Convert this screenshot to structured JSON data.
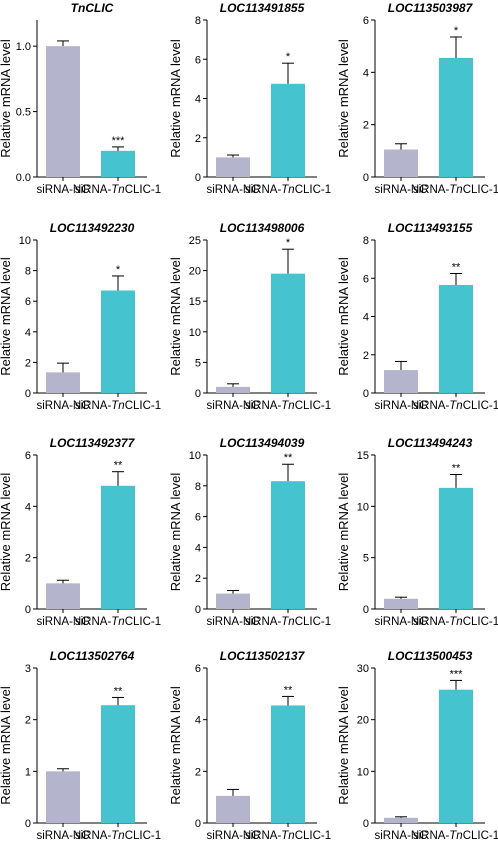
{
  "chart_data": [
    {
      "type": "bar",
      "title": "TnCLIC",
      "ylabel": "Relative mRNA level",
      "ylim": [
        0,
        1.2
      ],
      "yticks": [
        "0.0",
        "0.5",
        "1.0"
      ],
      "ytick_values": [
        0,
        0.5,
        1.0
      ],
      "categories": [
        {
          "prefix": "siRNA-NC",
          "italic": "",
          "suffix": ""
        },
        {
          "prefix": "siRNA-",
          "italic": "Tn",
          "suffix": "CLIC-1"
        }
      ],
      "values": [
        1.0,
        0.2
      ],
      "errors": [
        0.04,
        0.03
      ],
      "significance": "***",
      "colors": [
        "#b4b4cc",
        "#45c4cf"
      ]
    },
    {
      "type": "bar",
      "title": "LOC113491855",
      "ylabel": "Relative mRNA level",
      "ylim": [
        0,
        8
      ],
      "yticks": [
        "0",
        "2",
        "4",
        "6",
        "8"
      ],
      "ytick_values": [
        0,
        2,
        4,
        6,
        8
      ],
      "categories": [
        {
          "prefix": "siRNA-NC",
          "italic": "",
          "suffix": ""
        },
        {
          "prefix": "siRNA-",
          "italic": "Tn",
          "suffix": "CLIC-1"
        }
      ],
      "values": [
        1.0,
        4.75
      ],
      "errors": [
        0.12,
        1.05
      ],
      "significance": "*",
      "colors": [
        "#b4b4cc",
        "#45c4cf"
      ]
    },
    {
      "type": "bar",
      "title": "LOC113503987",
      "ylabel": "Relative mRNA level",
      "ylim": [
        0,
        6
      ],
      "yticks": [
        "0",
        "2",
        "4",
        "6"
      ],
      "ytick_values": [
        0,
        2,
        4,
        6
      ],
      "categories": [
        {
          "prefix": "siRNA-NC",
          "italic": "",
          "suffix": ""
        },
        {
          "prefix": "siRNA-",
          "italic": "Tn",
          "suffix": "CLIC-1"
        }
      ],
      "values": [
        1.05,
        4.55
      ],
      "errors": [
        0.22,
        0.8
      ],
      "significance": "*",
      "colors": [
        "#b4b4cc",
        "#45c4cf"
      ]
    },
    {
      "type": "bar",
      "title": "LOC113492230",
      "ylabel": "Relative mRNA level",
      "ylim": [
        0,
        10
      ],
      "yticks": [
        "0",
        "2",
        "4",
        "6",
        "8",
        "10"
      ],
      "ytick_values": [
        0,
        2,
        4,
        6,
        8,
        10
      ],
      "categories": [
        {
          "prefix": "siRNA-NC",
          "italic": "",
          "suffix": ""
        },
        {
          "prefix": "siRNA-",
          "italic": "Tn",
          "suffix": "CLIC-1"
        }
      ],
      "values": [
        1.35,
        6.7
      ],
      "errors": [
        0.6,
        0.95
      ],
      "significance": "*",
      "colors": [
        "#b4b4cc",
        "#45c4cf"
      ]
    },
    {
      "type": "bar",
      "title": "LOC113498006",
      "ylabel": "Relative mRNA level",
      "ylim": [
        0,
        25
      ],
      "yticks": [
        "0",
        "5",
        "10",
        "15",
        "20",
        "25"
      ],
      "ytick_values": [
        0,
        5,
        10,
        15,
        20,
        25
      ],
      "categories": [
        {
          "prefix": "siRNA-NC",
          "italic": "",
          "suffix": ""
        },
        {
          "prefix": "siRNA-",
          "italic": "Tn",
          "suffix": "CLIC-1"
        }
      ],
      "values": [
        1.0,
        19.5
      ],
      "errors": [
        0.5,
        4.0
      ],
      "significance": "*",
      "colors": [
        "#b4b4cc",
        "#45c4cf"
      ]
    },
    {
      "type": "bar",
      "title": "LOC113493155",
      "ylabel": "Relative mRNA level",
      "ylim": [
        0,
        8
      ],
      "yticks": [
        "0",
        "2",
        "4",
        "6",
        "8"
      ],
      "ytick_values": [
        0,
        2,
        4,
        6,
        8
      ],
      "categories": [
        {
          "prefix": "siRNA-NC",
          "italic": "",
          "suffix": ""
        },
        {
          "prefix": "siRNA-",
          "italic": "Tn",
          "suffix": "CLIC-1"
        }
      ],
      "values": [
        1.2,
        5.65
      ],
      "errors": [
        0.45,
        0.6
      ],
      "significance": "**",
      "colors": [
        "#b4b4cc",
        "#45c4cf"
      ]
    },
    {
      "type": "bar",
      "title": "LOC113492377",
      "ylabel": "Relative mRNA level",
      "ylim": [
        0,
        6
      ],
      "yticks": [
        "0",
        "2",
        "4",
        "6"
      ],
      "ytick_values": [
        0,
        2,
        4,
        6
      ],
      "categories": [
        {
          "prefix": "siRNA-NC",
          "italic": "",
          "suffix": ""
        },
        {
          "prefix": "siRNA-",
          "italic": "Tn",
          "suffix": "CLIC-1"
        }
      ],
      "values": [
        1.0,
        4.8
      ],
      "errors": [
        0.12,
        0.55
      ],
      "significance": "**",
      "colors": [
        "#b4b4cc",
        "#45c4cf"
      ]
    },
    {
      "type": "bar",
      "title": "LOC113494039",
      "ylabel": "Relative mRNA level",
      "ylim": [
        0,
        10
      ],
      "yticks": [
        "0",
        "2",
        "4",
        "6",
        "8",
        "10"
      ],
      "ytick_values": [
        0,
        2,
        4,
        6,
        8,
        10
      ],
      "categories": [
        {
          "prefix": "siRNA-NC",
          "italic": "",
          "suffix": ""
        },
        {
          "prefix": "siRNA-",
          "italic": "Tn",
          "suffix": "CLIC-1"
        }
      ],
      "values": [
        1.0,
        8.3
      ],
      "errors": [
        0.2,
        1.1
      ],
      "significance": "**",
      "colors": [
        "#b4b4cc",
        "#45c4cf"
      ]
    },
    {
      "type": "bar",
      "title": "LOC113494243",
      "ylabel": "Relative mRNA level",
      "ylim": [
        0,
        15
      ],
      "yticks": [
        "0",
        "5",
        "10",
        "15"
      ],
      "ytick_values": [
        0,
        5,
        10,
        15
      ],
      "categories": [
        {
          "prefix": "siRNA-NC",
          "italic": "",
          "suffix": ""
        },
        {
          "prefix": "siRNA-",
          "italic": "Tn",
          "suffix": "CLIC-1"
        }
      ],
      "values": [
        1.0,
        11.8
      ],
      "errors": [
        0.15,
        1.3
      ],
      "significance": "**",
      "colors": [
        "#b4b4cc",
        "#45c4cf"
      ]
    },
    {
      "type": "bar",
      "title": "LOC113502764",
      "ylabel": "Relative mRNA level",
      "ylim": [
        0,
        3
      ],
      "yticks": [
        "0",
        "1",
        "2",
        "3"
      ],
      "ytick_values": [
        0,
        1,
        2,
        3
      ],
      "categories": [
        {
          "prefix": "siRNA-NC",
          "italic": "",
          "suffix": ""
        },
        {
          "prefix": "siRNA-",
          "italic": "Tn",
          "suffix": "CLIC-1"
        }
      ],
      "values": [
        1.0,
        2.28
      ],
      "errors": [
        0.05,
        0.15
      ],
      "significance": "**",
      "colors": [
        "#b4b4cc",
        "#45c4cf"
      ]
    },
    {
      "type": "bar",
      "title": "LOC113502137",
      "ylabel": "Relative mRNA level",
      "ylim": [
        0,
        6
      ],
      "yticks": [
        "0",
        "2",
        "4",
        "6"
      ],
      "ytick_values": [
        0,
        2,
        4,
        6
      ],
      "categories": [
        {
          "prefix": "siRNA-NC",
          "italic": "",
          "suffix": ""
        },
        {
          "prefix": "siRNA-",
          "italic": "Tn",
          "suffix": "CLIC-1"
        }
      ],
      "values": [
        1.05,
        4.55
      ],
      "errors": [
        0.25,
        0.35
      ],
      "significance": "**",
      "colors": [
        "#b4b4cc",
        "#45c4cf"
      ]
    },
    {
      "type": "bar",
      "title": "LOC113500453",
      "ylabel": "Relative mRNA level",
      "ylim": [
        0,
        30
      ],
      "yticks": [
        "0",
        "10",
        "20",
        "30"
      ],
      "ytick_values": [
        0,
        10,
        20,
        30
      ],
      "categories": [
        {
          "prefix": "siRNA-NC",
          "italic": "",
          "suffix": ""
        },
        {
          "prefix": "siRNA-",
          "italic": "Tn",
          "suffix": "CLIC-1"
        }
      ],
      "values": [
        1.0,
        25.8
      ],
      "errors": [
        0.2,
        1.8
      ],
      "significance": "***",
      "colors": [
        "#b4b4cc",
        "#45c4cf"
      ]
    }
  ]
}
